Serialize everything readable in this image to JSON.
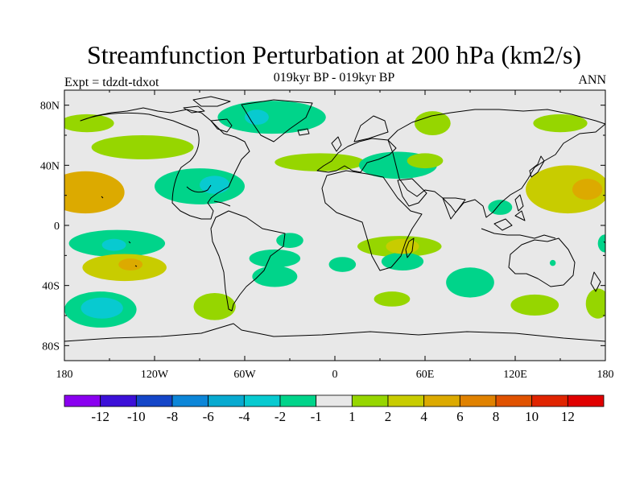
{
  "chart_data": {
    "type": "heatmap",
    "title": "Streamfunction Perturbation at 200 hPa (km2/s)",
    "subtitle": "019kyr BP - 019kyr BP",
    "left_label": "Expt = tdzdt-tdxot",
    "right_label": "ANN",
    "projection": "cylindrical equidistant",
    "xlim": [
      -180,
      180
    ],
    "ylim": [
      -90,
      90
    ],
    "x_ticks": [
      {
        "value": -180,
        "label": "180"
      },
      {
        "value": -120,
        "label": "120W"
      },
      {
        "value": -60,
        "label": "60W"
      },
      {
        "value": 0,
        "label": "0"
      },
      {
        "value": 60,
        "label": "60E"
      },
      {
        "value": 120,
        "label": "120E"
      },
      {
        "value": 180,
        "label": "180"
      }
    ],
    "y_ticks": [
      {
        "value": 80,
        "label": "80N"
      },
      {
        "value": 40,
        "label": "40N"
      },
      {
        "value": 0,
        "label": "0"
      },
      {
        "value": -40,
        "label": "40S"
      },
      {
        "value": -80,
        "label": "80S"
      }
    ],
    "colorbar": {
      "levels": [
        -12,
        -10,
        -8,
        -6,
        -4,
        -2,
        -1,
        1,
        2,
        4,
        6,
        8,
        10,
        12
      ],
      "labels": [
        "-12",
        "-10",
        "-8",
        "-6",
        "-4",
        "-2",
        "-1",
        "1",
        "2",
        "4",
        "6",
        "8",
        "10",
        "12"
      ],
      "colors": [
        "#8a00f0",
        "#3c10d8",
        "#1446c8",
        "#0c86d8",
        "#08aad0",
        "#08cad0",
        "#00d48a",
        "#e8e8e8",
        "#96d600",
        "#c8cc00",
        "#dcaa00",
        "#e08200",
        "#e05200",
        "#e02400",
        "#e00000"
      ]
    },
    "fields": [
      {
        "lon": -166,
        "lat": 22,
        "rx": 26,
        "ry": 14,
        "value": 4
      },
      {
        "lon": -128,
        "lat": 52,
        "rx": 34,
        "ry": 8,
        "value": 1.5
      },
      {
        "lon": -165,
        "lat": 68,
        "rx": 18,
        "ry": 6,
        "value": 1.5
      },
      {
        "lon": -90,
        "lat": 26,
        "rx": 30,
        "ry": 12,
        "value": -2
      },
      {
        "lon": -80,
        "lat": 27,
        "rx": 10,
        "ry": 6,
        "value": -3
      },
      {
        "lon": -42,
        "lat": 72,
        "rx": 36,
        "ry": 11,
        "value": -2
      },
      {
        "lon": -52,
        "lat": 72,
        "rx": 8,
        "ry": 5,
        "value": -3
      },
      {
        "lon": -10,
        "lat": 42,
        "rx": 30,
        "ry": 6,
        "value": 1.5
      },
      {
        "lon": 42,
        "lat": 40,
        "rx": 26,
        "ry": 9,
        "value": -1.5
      },
      {
        "lon": 60,
        "lat": 43,
        "rx": 12,
        "ry": 5,
        "value": 1.5
      },
      {
        "lon": 65,
        "lat": 68,
        "rx": 12,
        "ry": 8,
        "value": 1.5
      },
      {
        "lon": 150,
        "lat": 68,
        "rx": 18,
        "ry": 6,
        "value": 1.5
      },
      {
        "lon": 155,
        "lat": 24,
        "rx": 28,
        "ry": 16,
        "value": 3
      },
      {
        "lon": 168,
        "lat": 24,
        "rx": 10,
        "ry": 7,
        "value": 4
      },
      {
        "lon": 110,
        "lat": 12,
        "rx": 8,
        "ry": 5,
        "value": -1.5
      },
      {
        "lon": -145,
        "lat": -12,
        "rx": 32,
        "ry": 9,
        "value": -2
      },
      {
        "lon": -147,
        "lat": -13,
        "rx": 8,
        "ry": 4,
        "value": -3
      },
      {
        "lon": -140,
        "lat": -28,
        "rx": 28,
        "ry": 9,
        "value": 3
      },
      {
        "lon": -136,
        "lat": -26,
        "rx": 8,
        "ry": 4,
        "value": 4
      },
      {
        "lon": -156,
        "lat": -56,
        "rx": 24,
        "ry": 12,
        "value": -2
      },
      {
        "lon": -155,
        "lat": -55,
        "rx": 14,
        "ry": 7,
        "value": -3
      },
      {
        "lon": -80,
        "lat": -54,
        "rx": 14,
        "ry": 9,
        "value": 1.5
      },
      {
        "lon": -40,
        "lat": -22,
        "rx": 17,
        "ry": 6,
        "value": -1.5
      },
      {
        "lon": -40,
        "lat": -34,
        "rx": 15,
        "ry": 7,
        "value": -1.5
      },
      {
        "lon": -30,
        "lat": -10,
        "rx": 9,
        "ry": 5,
        "value": -1.5
      },
      {
        "lon": 5,
        "lat": -26,
        "rx": 9,
        "ry": 5,
        "value": -1.5
      },
      {
        "lon": 43,
        "lat": -14,
        "rx": 28,
        "ry": 7,
        "value": 1.5
      },
      {
        "lon": 45,
        "lat": -14,
        "rx": 11,
        "ry": 5,
        "value": 2
      },
      {
        "lon": 45,
        "lat": -24,
        "rx": 14,
        "ry": 6,
        "value": -1.5
      },
      {
        "lon": 38,
        "lat": -49,
        "rx": 12,
        "ry": 5,
        "value": 1.5
      },
      {
        "lon": 90,
        "lat": -38,
        "rx": 16,
        "ry": 10,
        "value": -1.5
      },
      {
        "lon": 133,
        "lat": -53,
        "rx": 16,
        "ry": 7,
        "value": 1.5
      },
      {
        "lon": 175,
        "lat": -52,
        "rx": 8,
        "ry": 10,
        "value": 1.5
      },
      {
        "lon": 180,
        "lat": -12,
        "rx": 5,
        "ry": 6,
        "value": -1.5
      },
      {
        "lon": 145,
        "lat": -25,
        "rx": 2,
        "ry": 2,
        "value": -1.5
      }
    ]
  }
}
